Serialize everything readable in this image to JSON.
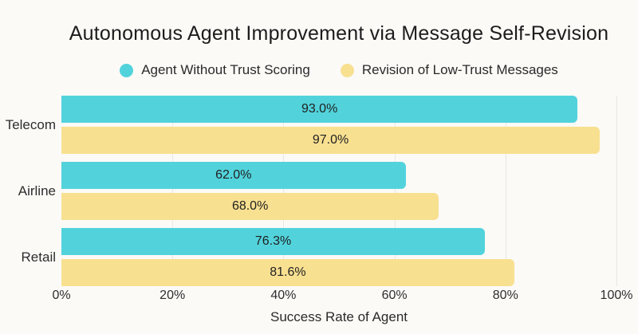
{
  "chart_data": {
    "type": "bar",
    "orientation": "horizontal",
    "title": "Autonomous Agent Improvement via Message Self-Revision",
    "categories": [
      "Telecom",
      "Airline",
      "Retail"
    ],
    "series": [
      {
        "name": "Agent Without Trust Scoring",
        "color": "#52d3dc",
        "values": [
          93.0,
          62.0,
          76.3
        ],
        "labels": [
          "93.0%",
          "62.0%",
          "76.3%"
        ]
      },
      {
        "name": "Revision of Low-Trust Messages",
        "color": "#f8e091",
        "values": [
          97.0,
          68.0,
          81.6
        ],
        "labels": [
          "97.0%",
          "68.0%",
          "81.6%"
        ]
      }
    ],
    "xlabel": "Success Rate of Agent",
    "x_ticks": [
      "0%",
      "20%",
      "40%",
      "60%",
      "80%",
      "100%"
    ],
    "x_tick_values": [
      0,
      20,
      40,
      60,
      80,
      100
    ],
    "xlim": [
      0,
      100
    ],
    "grid": "vertical",
    "legend_position": "top",
    "background_color": "#fbfaf7",
    "gridline_color": "#e9e7e3"
  }
}
